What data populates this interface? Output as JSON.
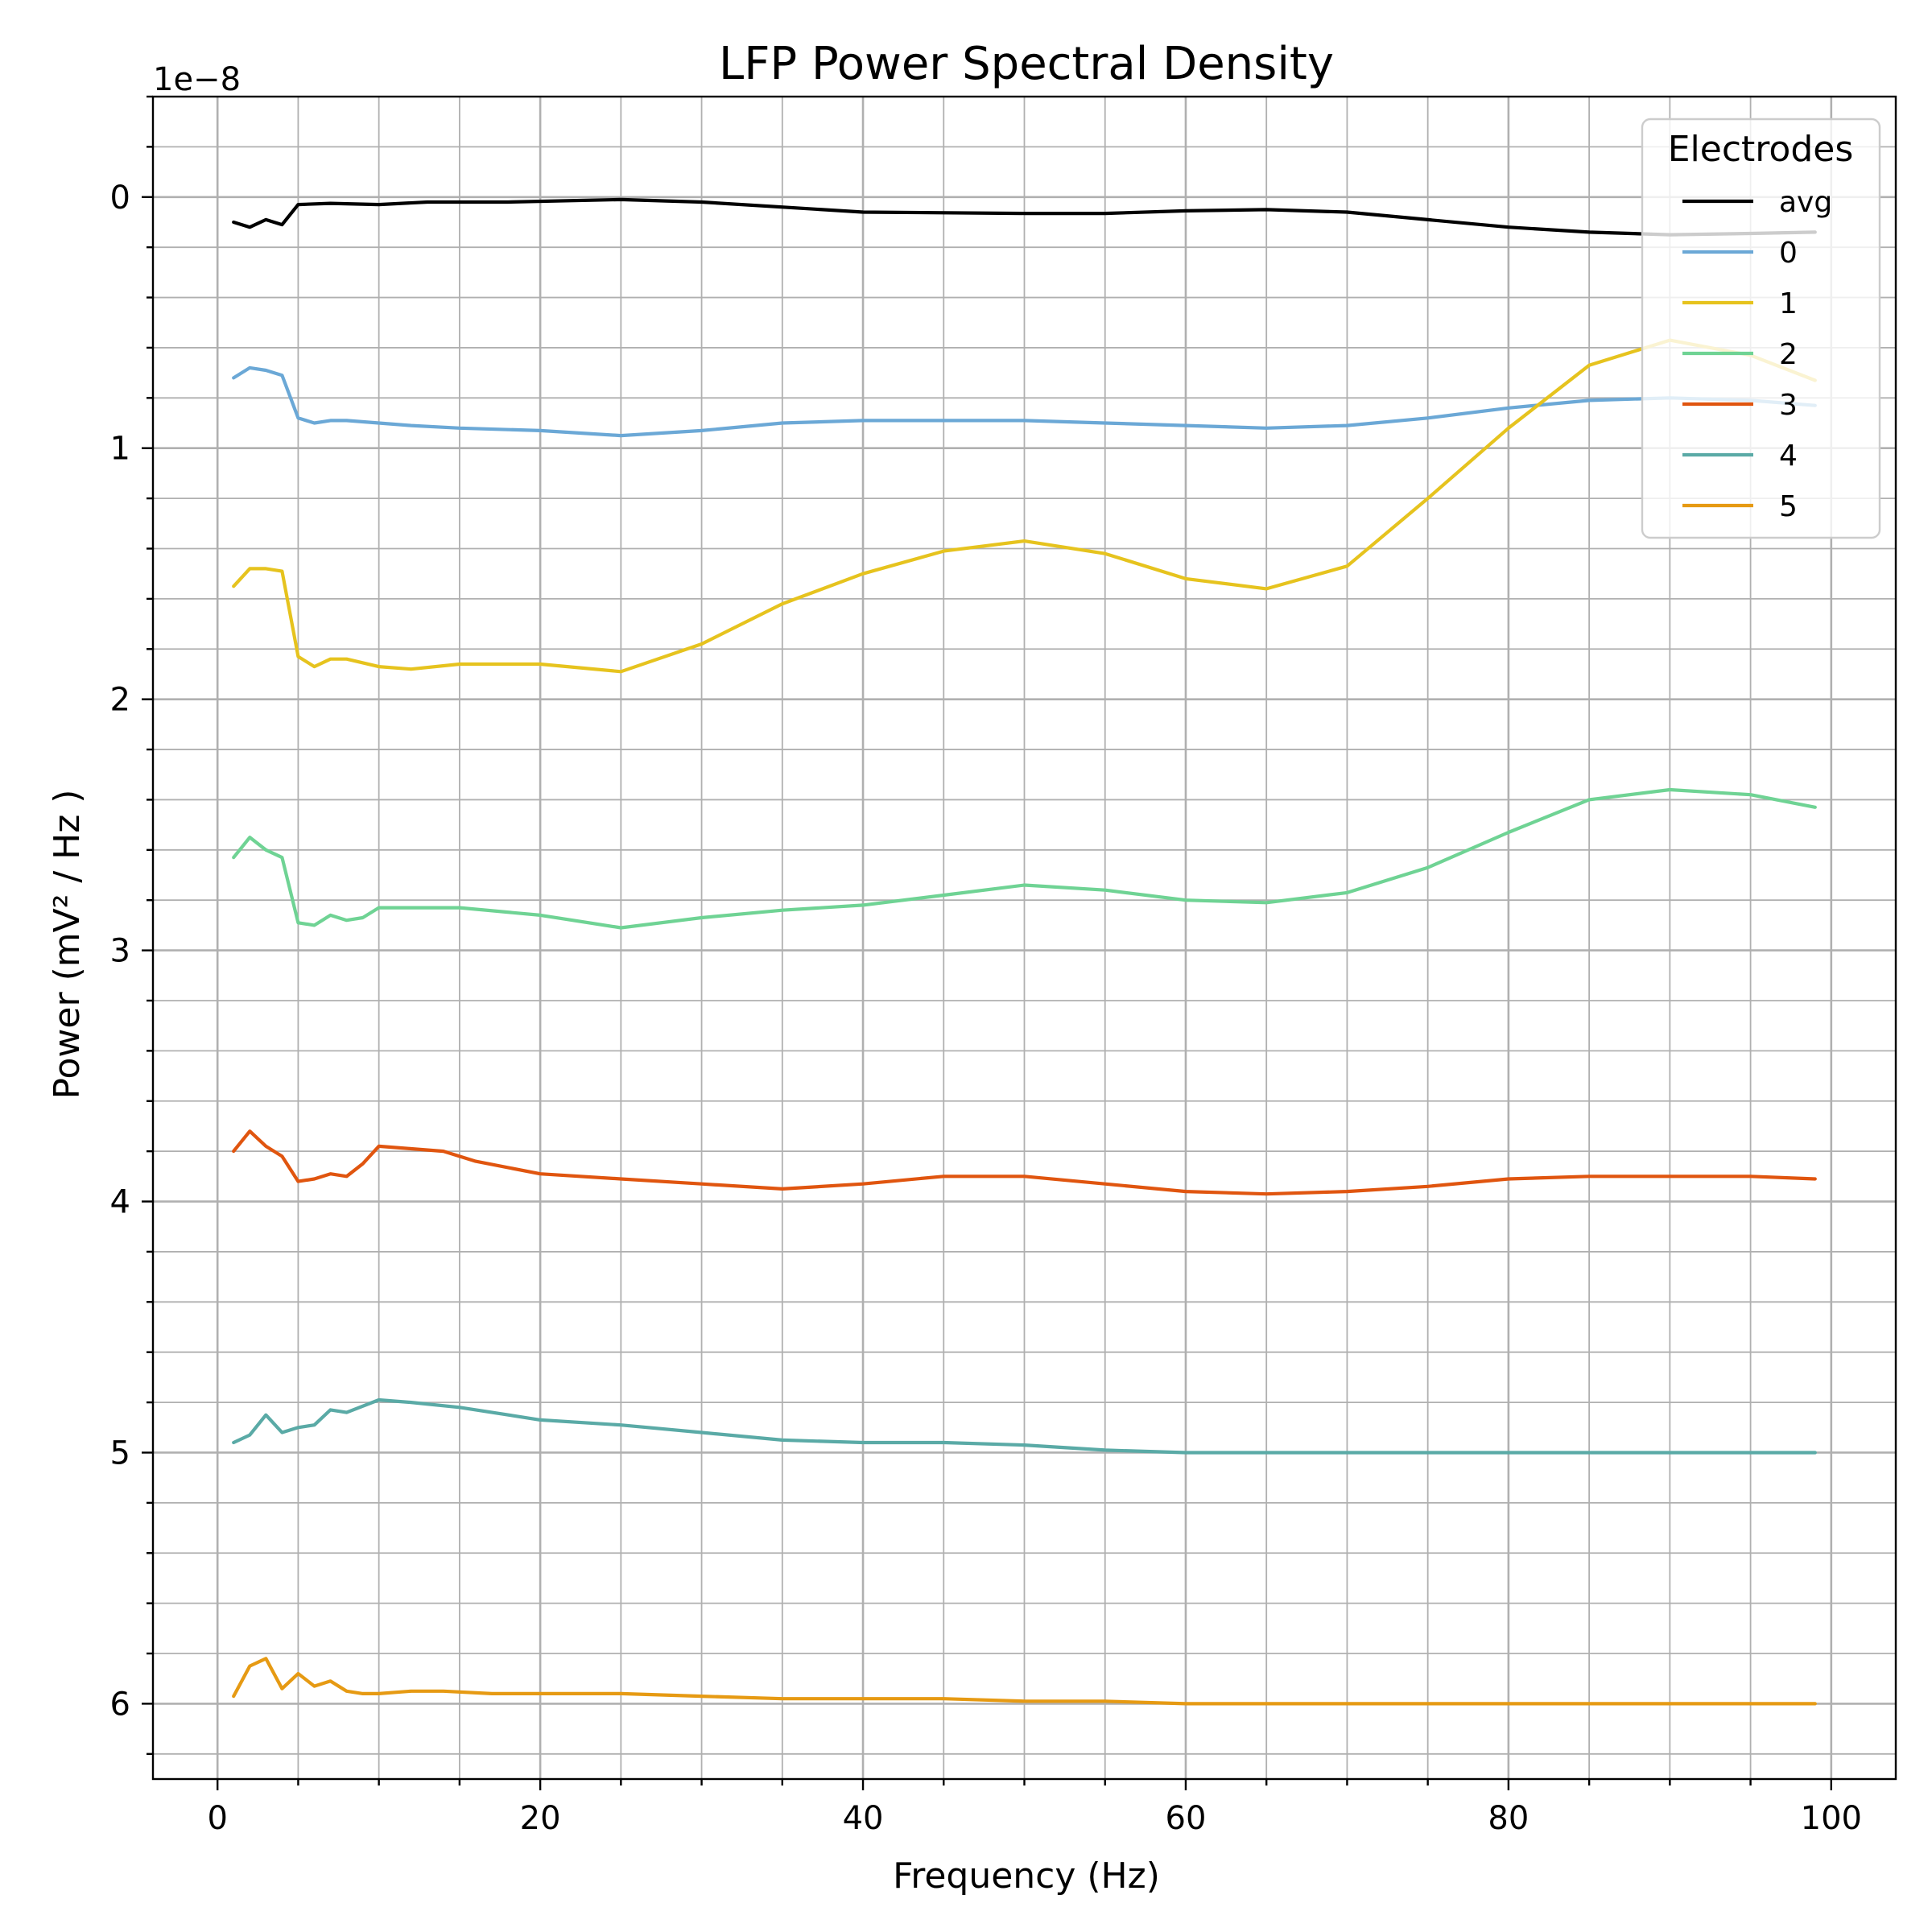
{
  "chart_data": {
    "type": "line",
    "title": "LFP Power Spectral Density",
    "xlabel": "Frequency (Hz)",
    "ylabel": "Power (mV² / Hz )",
    "y_offset_text": "1e−8",
    "y_inverted": true,
    "xlim": [
      -4,
      104
    ],
    "ylim": [
      6.3,
      -0.4
    ],
    "x_ticks": [
      0,
      20,
      40,
      60,
      80,
      100
    ],
    "y_ticks": [
      0,
      1,
      2,
      3,
      4,
      5,
      6
    ],
    "x_minor_step": 5,
    "y_minor_step": 0.2,
    "grid": true,
    "legend": {
      "title": "Electrodes",
      "placement": "top-right"
    },
    "series": [
      {
        "name": "avg",
        "color": "#000000",
        "points": [
          [
            1,
            0.1
          ],
          [
            2,
            0.12
          ],
          [
            3,
            0.09
          ],
          [
            4,
            0.11
          ],
          [
            5,
            0.03
          ],
          [
            7,
            0.025
          ],
          [
            10,
            0.03
          ],
          [
            13,
            0.02
          ],
          [
            18,
            0.02
          ],
          [
            25,
            0.01
          ],
          [
            30,
            0.02
          ],
          [
            40,
            0.06
          ],
          [
            50,
            0.065
          ],
          [
            55,
            0.065
          ],
          [
            60,
            0.055
          ],
          [
            65,
            0.05
          ],
          [
            70,
            0.06
          ],
          [
            75,
            0.09
          ],
          [
            80,
            0.12
          ],
          [
            85,
            0.14
          ],
          [
            90,
            0.15
          ],
          [
            95,
            0.145
          ],
          [
            99,
            0.14
          ]
        ]
      },
      {
        "name": "0",
        "color": "#6ba8d6",
        "points": [
          [
            1,
            0.72
          ],
          [
            2,
            0.68
          ],
          [
            3,
            0.69
          ],
          [
            4,
            0.71
          ],
          [
            5,
            0.88
          ],
          [
            6,
            0.9
          ],
          [
            7,
            0.89
          ],
          [
            8,
            0.89
          ],
          [
            10,
            0.9
          ],
          [
            12,
            0.91
          ],
          [
            15,
            0.92
          ],
          [
            20,
            0.93
          ],
          [
            25,
            0.95
          ],
          [
            30,
            0.93
          ],
          [
            35,
            0.9
          ],
          [
            40,
            0.89
          ],
          [
            45,
            0.89
          ],
          [
            50,
            0.89
          ],
          [
            55,
            0.9
          ],
          [
            60,
            0.91
          ],
          [
            65,
            0.92
          ],
          [
            70,
            0.91
          ],
          [
            75,
            0.88
          ],
          [
            80,
            0.84
          ],
          [
            85,
            0.81
          ],
          [
            90,
            0.8
          ],
          [
            95,
            0.81
          ],
          [
            99,
            0.83
          ]
        ]
      },
      {
        "name": "1",
        "color": "#e6c31e",
        "points": [
          [
            1,
            1.55
          ],
          [
            2,
            1.48
          ],
          [
            3,
            1.48
          ],
          [
            4,
            1.49
          ],
          [
            5,
            1.83
          ],
          [
            6,
            1.87
          ],
          [
            7,
            1.84
          ],
          [
            8,
            1.84
          ],
          [
            10,
            1.87
          ],
          [
            12,
            1.88
          ],
          [
            15,
            1.86
          ],
          [
            20,
            1.86
          ],
          [
            25,
            1.89
          ],
          [
            30,
            1.78
          ],
          [
            35,
            1.62
          ],
          [
            40,
            1.5
          ],
          [
            45,
            1.41
          ],
          [
            50,
            1.37
          ],
          [
            55,
            1.42
          ],
          [
            60,
            1.52
          ],
          [
            65,
            1.56
          ],
          [
            70,
            1.47
          ],
          [
            75,
            1.2
          ],
          [
            80,
            0.92
          ],
          [
            85,
            0.67
          ],
          [
            90,
            0.57
          ],
          [
            95,
            0.63
          ],
          [
            99,
            0.73
          ]
        ]
      },
      {
        "name": "2",
        "color": "#6fd394",
        "points": [
          [
            1,
            2.63
          ],
          [
            2,
            2.55
          ],
          [
            3,
            2.6
          ],
          [
            4,
            2.63
          ],
          [
            5,
            2.89
          ],
          [
            6,
            2.9
          ],
          [
            7,
            2.86
          ],
          [
            8,
            2.88
          ],
          [
            9,
            2.87
          ],
          [
            10,
            2.83
          ],
          [
            12,
            2.83
          ],
          [
            15,
            2.83
          ],
          [
            20,
            2.86
          ],
          [
            25,
            2.91
          ],
          [
            30,
            2.87
          ],
          [
            35,
            2.84
          ],
          [
            40,
            2.82
          ],
          [
            45,
            2.78
          ],
          [
            50,
            2.74
          ],
          [
            55,
            2.76
          ],
          [
            60,
            2.8
          ],
          [
            65,
            2.81
          ],
          [
            70,
            2.77
          ],
          [
            75,
            2.67
          ],
          [
            80,
            2.53
          ],
          [
            85,
            2.4
          ],
          [
            90,
            2.36
          ],
          [
            95,
            2.38
          ],
          [
            99,
            2.43
          ]
        ]
      },
      {
        "name": "3",
        "color": "#e0550f",
        "points": [
          [
            1,
            3.8
          ],
          [
            2,
            3.72
          ],
          [
            3,
            3.78
          ],
          [
            4,
            3.82
          ],
          [
            5,
            3.92
          ],
          [
            6,
            3.91
          ],
          [
            7,
            3.89
          ],
          [
            8,
            3.9
          ],
          [
            9,
            3.85
          ],
          [
            10,
            3.78
          ],
          [
            12,
            3.79
          ],
          [
            14,
            3.8
          ],
          [
            16,
            3.84
          ],
          [
            20,
            3.89
          ],
          [
            25,
            3.91
          ],
          [
            30,
            3.93
          ],
          [
            35,
            3.95
          ],
          [
            40,
            3.93
          ],
          [
            45,
            3.9
          ],
          [
            50,
            3.9
          ],
          [
            55,
            3.93
          ],
          [
            60,
            3.96
          ],
          [
            65,
            3.97
          ],
          [
            70,
            3.96
          ],
          [
            75,
            3.94
          ],
          [
            80,
            3.91
          ],
          [
            85,
            3.9
          ],
          [
            90,
            3.9
          ],
          [
            95,
            3.9
          ],
          [
            99,
            3.91
          ]
        ]
      },
      {
        "name": "4",
        "color": "#5aaaa6",
        "points": [
          [
            1,
            4.96
          ],
          [
            2,
            4.93
          ],
          [
            3,
            4.85
          ],
          [
            4,
            4.92
          ],
          [
            5,
            4.9
          ],
          [
            6,
            4.89
          ],
          [
            7,
            4.83
          ],
          [
            8,
            4.84
          ],
          [
            10,
            4.79
          ],
          [
            12,
            4.8
          ],
          [
            15,
            4.82
          ],
          [
            20,
            4.87
          ],
          [
            25,
            4.89
          ],
          [
            30,
            4.92
          ],
          [
            35,
            4.95
          ],
          [
            40,
            4.96
          ],
          [
            45,
            4.96
          ],
          [
            50,
            4.97
          ],
          [
            55,
            4.99
          ],
          [
            60,
            5.0
          ],
          [
            65,
            5.0
          ],
          [
            70,
            5.0
          ],
          [
            80,
            5.0
          ],
          [
            90,
            5.0
          ],
          [
            99,
            5.0
          ]
        ]
      },
      {
        "name": "5",
        "color": "#e69a13",
        "points": [
          [
            1,
            5.97
          ],
          [
            2,
            5.85
          ],
          [
            3,
            5.82
          ],
          [
            4,
            5.94
          ],
          [
            5,
            5.88
          ],
          [
            6,
            5.93
          ],
          [
            7,
            5.91
          ],
          [
            8,
            5.95
          ],
          [
            9,
            5.96
          ],
          [
            10,
            5.96
          ],
          [
            12,
            5.95
          ],
          [
            14,
            5.95
          ],
          [
            17,
            5.96
          ],
          [
            20,
            5.96
          ],
          [
            25,
            5.96
          ],
          [
            30,
            5.97
          ],
          [
            35,
            5.98
          ],
          [
            40,
            5.98
          ],
          [
            45,
            5.98
          ],
          [
            50,
            5.99
          ],
          [
            55,
            5.99
          ],
          [
            60,
            6.0
          ],
          [
            70,
            6.0
          ],
          [
            80,
            6.0
          ],
          [
            90,
            6.0
          ],
          [
            99,
            6.0
          ]
        ]
      }
    ]
  }
}
